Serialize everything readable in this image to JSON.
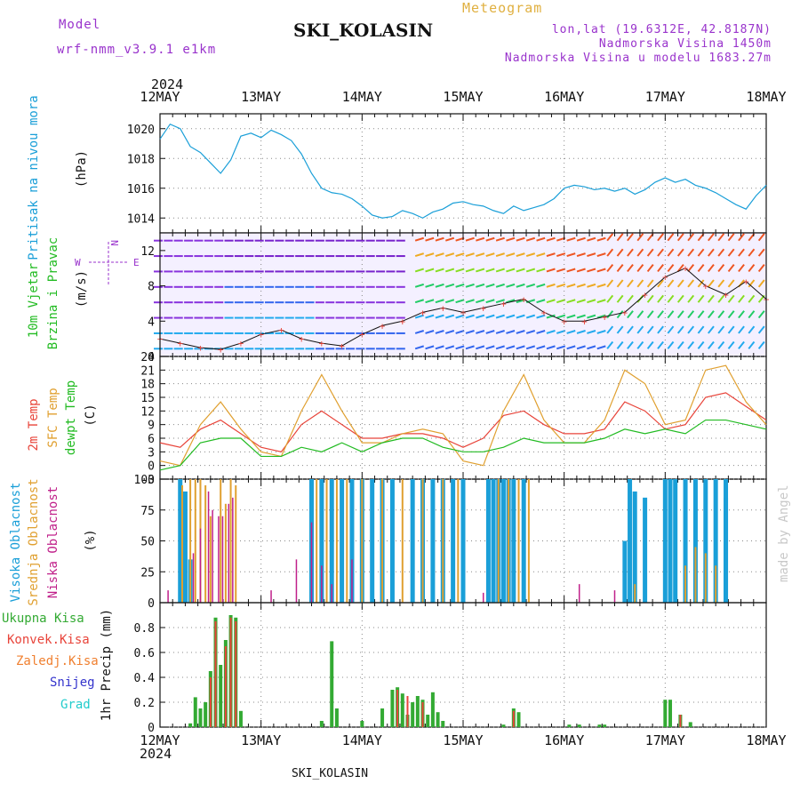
{
  "header": {
    "model_label": "Model",
    "model_name": "wrf-nmm_v3.9.1 e1km",
    "station_title": "SKI_KOLASIN",
    "meteogram_label": "Meteogram",
    "lonlat": "lon,lat (19.6312E, 42.8187N)",
    "altitude": "Nadmorska Visina 1450m",
    "model_altitude": "Nadmorska Visina u modelu 1683.27m",
    "footer_station": "SKI_KOLASIN",
    "credit": "made by Angel",
    "year": "2024"
  },
  "colors": {
    "pressure": "#1a9fd8",
    "temp2m": "#e8443a",
    "sfc": "#e0a030",
    "dew": "#22bb22",
    "high_cloud": "#1a9fd8",
    "mid_cloud": "#e0a030",
    "low_cloud": "#c0208a",
    "total": "#33aa33",
    "conv": "#e8443a",
    "frozen": "#f08030",
    "snow": "#3333cc",
    "hail": "#22cccc",
    "wind_scale": "#9933cc"
  },
  "chart_data": [
    {
      "type": "line",
      "panel": "pressure",
      "ylabel": [
        "Pritisak na nivou mora",
        "(hPa)"
      ],
      "ylim": [
        1013,
        1021
      ],
      "yticks": [
        1014,
        1016,
        1018,
        1020
      ],
      "x_days": [
        "12MAY",
        "13MAY",
        "14MAY",
        "15MAY",
        "16MAY",
        "17MAY",
        "18MAY"
      ],
      "grid": true,
      "series": [
        {
          "x": [
            0,
            0.1,
            0.2,
            0.3,
            0.4,
            0.5,
            0.6,
            0.7,
            0.8,
            0.9,
            1.0,
            1.1,
            1.2,
            1.3,
            1.4,
            1.5,
            1.6,
            1.7,
            1.8,
            1.9,
            2.0,
            2.1,
            2.2,
            2.3,
            2.4,
            2.5,
            2.6,
            2.7,
            2.8,
            2.9,
            3.0,
            3.1,
            3.2,
            3.3,
            3.4,
            3.5,
            3.6,
            3.7,
            3.8,
            3.9,
            4.0,
            4.1,
            4.2,
            4.3,
            4.4,
            4.5,
            4.6,
            4.7,
            4.8,
            4.9,
            5.0,
            5.1,
            5.2,
            5.3,
            5.4,
            5.5,
            5.6,
            5.7,
            5.8,
            5.9,
            6.0
          ],
          "y": [
            1019.3,
            1020.3,
            1020.0,
            1018.8,
            1018.4,
            1017.7,
            1017.0,
            1017.9,
            1019.5,
            1019.7,
            1019.4,
            1019.9,
            1019.6,
            1019.2,
            1018.3,
            1017.0,
            1016.0,
            1015.7,
            1015.6,
            1015.3,
            1014.8,
            1014.2,
            1014.0,
            1014.1,
            1014.5,
            1014.3,
            1014.0,
            1014.4,
            1014.6,
            1015.0,
            1015.1,
            1014.9,
            1014.8,
            1014.5,
            1014.3,
            1014.8,
            1014.5,
            1014.7,
            1014.9,
            1015.3,
            1016.0,
            1016.2,
            1016.1,
            1015.9,
            1016.0,
            1015.8,
            1016.0,
            1015.6,
            1015.9,
            1016.4,
            1016.7,
            1016.4,
            1016.6,
            1016.2,
            1016.0,
            1015.7,
            1015.3,
            1014.9,
            1014.6,
            1015.5,
            1016.2
          ]
        }
      ]
    },
    {
      "type": "wind",
      "panel": "wind",
      "ylabel": [
        "10m Vjetar",
        "Brzina i Pravac",
        "(m/s)"
      ],
      "ylim": [
        0,
        14
      ],
      "yticks": [
        0,
        4,
        8,
        12
      ],
      "legend": {
        "n": "N",
        "w": "W",
        "e": "E"
      },
      "series": [
        {
          "name": "speed",
          "x": [
            0,
            0.2,
            0.4,
            0.6,
            0.8,
            1.0,
            1.2,
            1.4,
            1.6,
            1.8,
            2.0,
            2.2,
            2.4,
            2.6,
            2.8,
            3.0,
            3.2,
            3.4,
            3.6,
            3.8,
            4.0,
            4.2,
            4.4,
            4.6,
            4.8,
            5.0,
            5.2,
            5.4,
            5.6,
            5.8,
            6.0
          ],
          "y": [
            2.0,
            1.5,
            1.0,
            0.8,
            1.5,
            2.5,
            3.0,
            2.0,
            1.5,
            1.2,
            2.5,
            3.5,
            4.0,
            5.0,
            5.5,
            5.0,
            5.5,
            6.0,
            6.5,
            5.0,
            4.0,
            4.0,
            4.5,
            5.0,
            7.0,
            9.0,
            10.0,
            8.0,
            7.0,
            8.5,
            6.5
          ]
        }
      ]
    },
    {
      "type": "line",
      "panel": "temperature",
      "ylabel": [
        "2m Temp",
        "SFC Temp",
        "dewpt Temp",
        "(C)"
      ],
      "ylim": [
        -3,
        24
      ],
      "yticks": [
        -3,
        0,
        3,
        6,
        9,
        12,
        15,
        18,
        21,
        24
      ],
      "grid": true,
      "series": [
        {
          "name": "2m Temp",
          "x": [
            0,
            0.2,
            0.4,
            0.6,
            0.8,
            1.0,
            1.2,
            1.4,
            1.6,
            1.8,
            2.0,
            2.2,
            2.4,
            2.6,
            2.8,
            3.0,
            3.2,
            3.4,
            3.6,
            3.8,
            4.0,
            4.2,
            4.4,
            4.6,
            4.8,
            5.0,
            5.2,
            5.4,
            5.6,
            5.8,
            6.0
          ],
          "y": [
            5,
            4,
            8,
            10,
            7,
            4,
            3,
            9,
            12,
            9,
            6,
            6,
            7,
            7,
            6,
            4,
            6,
            11,
            12,
            9,
            7,
            7,
            8,
            14,
            12,
            8,
            9,
            15,
            16,
            13,
            10
          ]
        },
        {
          "name": "SFC Temp",
          "x": [
            0,
            0.2,
            0.4,
            0.6,
            0.8,
            1.0,
            1.2,
            1.4,
            1.6,
            1.8,
            2.0,
            2.2,
            2.4,
            2.6,
            2.8,
            3.0,
            3.2,
            3.4,
            3.6,
            3.8,
            4.0,
            4.2,
            4.4,
            4.6,
            4.8,
            5.0,
            5.2,
            5.4,
            5.6,
            5.8,
            6.0
          ],
          "y": [
            1,
            0,
            9,
            14,
            8,
            3,
            2,
            12,
            20,
            12,
            5,
            5,
            7,
            8,
            7,
            1,
            0,
            12,
            20,
            10,
            5,
            5,
            10,
            21,
            18,
            9,
            10,
            21,
            22,
            14,
            9
          ]
        },
        {
          "name": "dewpt Temp",
          "x": [
            0,
            0.2,
            0.4,
            0.6,
            0.8,
            1.0,
            1.2,
            1.4,
            1.6,
            1.8,
            2.0,
            2.2,
            2.4,
            2.6,
            2.8,
            3.0,
            3.2,
            3.4,
            3.6,
            3.8,
            4.0,
            4.2,
            4.4,
            4.6,
            4.8,
            5.0,
            5.2,
            5.4,
            5.6,
            5.8,
            6.0
          ],
          "y": [
            -1,
            0,
            5,
            6,
            6,
            2,
            2,
            4,
            3,
            5,
            3,
            5,
            6,
            6,
            4,
            3,
            3,
            4,
            6,
            5,
            5,
            5,
            6,
            8,
            7,
            8,
            7,
            10,
            10,
            9,
            8
          ]
        }
      ]
    },
    {
      "type": "bar",
      "panel": "clouds",
      "ylabel": [
        "Visoka Oblacnost",
        "Srednja Oblacnost",
        "Niska Oblacnost",
        "(%)"
      ],
      "ylim": [
        0,
        100
      ],
      "yticks": [
        0,
        25,
        50,
        75,
        100
      ],
      "series": [
        {
          "name": "Visoka Oblacnost",
          "x": [
            0.2,
            0.25,
            0.3,
            1.5,
            1.6,
            1.7,
            1.8,
            1.9,
            2.0,
            2.1,
            2.2,
            2.3,
            2.5,
            2.6,
            2.7,
            2.8,
            2.9,
            3.0,
            3.25,
            3.3,
            3.35,
            3.4,
            3.45,
            3.5,
            3.6,
            4.6,
            4.65,
            4.7,
            4.8,
            5.0,
            5.05,
            5.1,
            5.2,
            5.3,
            5.4,
            5.5,
            5.6,
            5.6
          ],
          "y": [
            100,
            90,
            35,
            100,
            100,
            100,
            100,
            100,
            100,
            100,
            100,
            100,
            100,
            100,
            100,
            100,
            100,
            100,
            100,
            100,
            100,
            100,
            100,
            100,
            100,
            50,
            100,
            90,
            85,
            100,
            100,
            100,
            100,
            100,
            100,
            100,
            100,
            85
          ]
        },
        {
          "name": "Srednja Oblacnost",
          "x": [
            0.22,
            0.3,
            0.35,
            0.4,
            0.45,
            0.5,
            0.6,
            0.65,
            0.7,
            0.75,
            1.55,
            1.65,
            1.75,
            1.85,
            2.0,
            2.2,
            2.4,
            2.6,
            2.8,
            2.95,
            3.35,
            3.45,
            3.55,
            3.65,
            4.7,
            5.2,
            5.3,
            5.4,
            5.5
          ],
          "y": [
            95,
            100,
            100,
            100,
            95,
            70,
            100,
            80,
            100,
            95,
            100,
            100,
            100,
            100,
            100,
            100,
            100,
            100,
            100,
            100,
            100,
            100,
            100,
            100,
            15,
            30,
            45,
            40,
            30
          ]
        },
        {
          "name": "Niska Oblacnost",
          "x": [
            0.08,
            0.33,
            0.4,
            0.48,
            0.52,
            0.58,
            0.62,
            0.68,
            0.72,
            1.1,
            1.35,
            1.5,
            1.6,
            1.7,
            1.9,
            3.2,
            4.15,
            4.5
          ],
          "y": [
            10,
            40,
            60,
            90,
            75,
            70,
            70,
            80,
            85,
            10,
            35,
            65,
            30,
            15,
            35,
            8,
            15,
            10
          ]
        }
      ]
    },
    {
      "type": "bar",
      "panel": "precipitation",
      "ylabel": [
        "Ukupna Kisa",
        "Konvek.Kisa",
        "Zaledj.Kisa",
        "Snijeg",
        "Grad",
        "1hr Precip (mm)"
      ],
      "ylim": [
        0,
        1.0
      ],
      "yticks": [
        0,
        0.2,
        0.4,
        0.6,
        0.8
      ],
      "x_days": [
        "12MAY",
        "13MAY",
        "14MAY",
        "15MAY",
        "16MAY",
        "17MAY",
        "18MAY"
      ],
      "series": [
        {
          "name": "Ukupna Kisa",
          "x": [
            0.3,
            0.35,
            0.4,
            0.45,
            0.5,
            0.55,
            0.6,
            0.65,
            0.7,
            0.75,
            0.8,
            1.6,
            1.7,
            1.75,
            2.0,
            2.2,
            2.3,
            2.35,
            2.4,
            2.45,
            2.5,
            2.55,
            2.6,
            2.65,
            2.7,
            2.75,
            2.8,
            3.4,
            3.5,
            3.55,
            4.05,
            4.15,
            4.35,
            4.4,
            5.0,
            5.05,
            5.15,
            5.25
          ],
          "y": [
            0.03,
            0.24,
            0.15,
            0.2,
            0.45,
            0.88,
            0.5,
            0.7,
            0.9,
            0.88,
            0.13,
            0.05,
            0.69,
            0.15,
            0.05,
            0.15,
            0.3,
            0.32,
            0.27,
            0.1,
            0.2,
            0.25,
            0.22,
            0.1,
            0.28,
            0.12,
            0.05,
            0.02,
            0.15,
            0.12,
            0.02,
            0.02,
            0.02,
            0.02,
            0.22,
            0.22,
            0.1,
            0.04
          ]
        },
        {
          "name": "Konvek.Kisa",
          "x": [
            0.5,
            0.55,
            0.65,
            0.7,
            0.75,
            2.35,
            2.45,
            2.6,
            3.5,
            5.15
          ],
          "y": [
            0.4,
            0.85,
            0.65,
            0.88,
            0.85,
            0.3,
            0.25,
            0.2,
            0.13,
            0.1
          ]
        }
      ]
    }
  ]
}
